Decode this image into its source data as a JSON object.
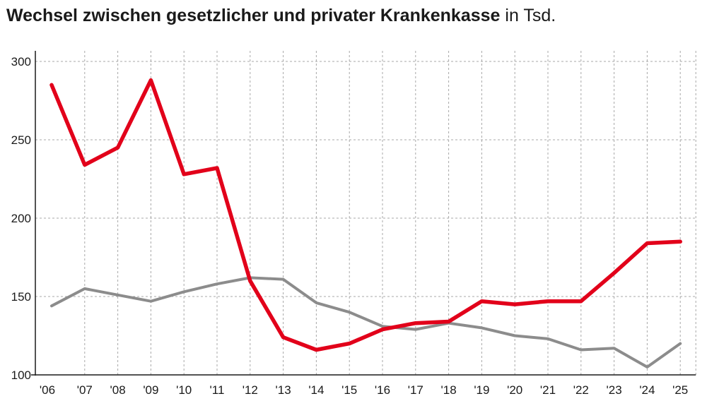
{
  "title": {
    "main": "Wechsel zwischen gesetzlicher und privater Krankenkasse",
    "unit": "in Tsd."
  },
  "chart_data": {
    "type": "line",
    "x": [
      "'06",
      "'07",
      "'08",
      "'09",
      "'10",
      "'11",
      "'12",
      "'13",
      "'14",
      "'15",
      "'16",
      "'17",
      "'18",
      "'19",
      "'20",
      "'21",
      "'22",
      "'23",
      "'24",
      "'25"
    ],
    "series": [
      {
        "color": "#e2001a",
        "values": [
          285,
          234,
          245,
          288,
          228,
          232,
          160,
          124,
          116,
          120,
          129,
          133,
          134,
          147,
          145,
          147,
          147,
          165,
          184,
          185
        ]
      },
      {
        "color": "#8c8c8c",
        "values": [
          144,
          155,
          151,
          147,
          153,
          158,
          162,
          161,
          146,
          140,
          131,
          129,
          133,
          130,
          125,
          123,
          116,
          117,
          105,
          120
        ]
      }
    ],
    "yticks": [
      100,
      150,
      200,
      250,
      300
    ],
    "ylim": [
      100,
      300
    ],
    "grid": true
  }
}
